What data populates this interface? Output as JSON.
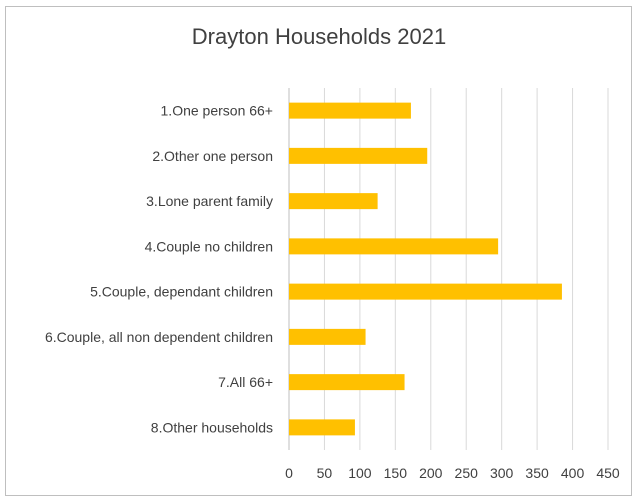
{
  "chart_data": {
    "type": "bar",
    "orientation": "horizontal",
    "title": "Drayton Households 2021",
    "categories": [
      "1.One person 66+",
      "2.Other one person",
      "3.Lone parent family",
      "4.Couple no children",
      "5.Couple, dependant children",
      "6.Couple, all non dependent children",
      "7.All 66+",
      "8.Other households"
    ],
    "values": [
      172,
      195,
      125,
      295,
      385,
      108,
      163,
      93
    ],
    "xlim": [
      0,
      450
    ],
    "xticks": [
      "0",
      "50",
      "100",
      "150",
      "200",
      "250",
      "300",
      "350",
      "400",
      "450"
    ],
    "grid": "vertical",
    "bar_color": "#FFC000",
    "grid_color": "#D9D9D9",
    "legend": "none"
  }
}
